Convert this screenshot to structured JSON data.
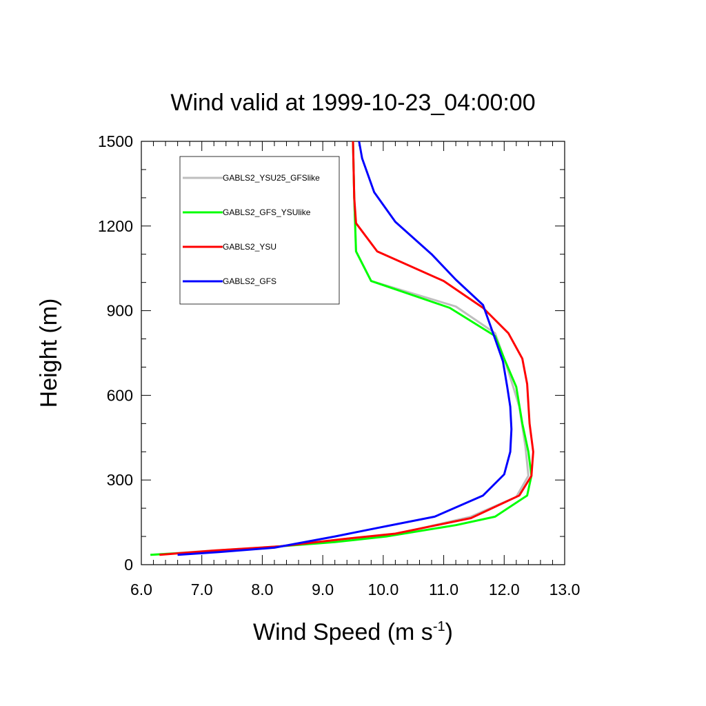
{
  "chart_data": {
    "type": "line",
    "title": "Wind valid at 1999-10-23_04:00:00",
    "xlabel": "Wind Speed (m s",
    "xlabel_sup": "-1",
    "xlabel_end": ")",
    "ylabel": "Height (m)",
    "xlim": [
      6.0,
      13.0
    ],
    "ylim": [
      0,
      1500
    ],
    "xticks": [
      6.0,
      7.0,
      8.0,
      9.0,
      10.0,
      11.0,
      12.0,
      13.0
    ],
    "xtick_labels": [
      "6.0",
      "7.0",
      "8.0",
      "9.0",
      "10.0",
      "11.0",
      "12.0",
      "13.0"
    ],
    "yticks": [
      0,
      300,
      600,
      900,
      1200,
      1500
    ],
    "ytick_labels": [
      "0",
      "300",
      "600",
      "900",
      "1200",
      "1500"
    ],
    "grid": false,
    "legend_position": "top-left",
    "series": [
      {
        "name": "GABLS2_YSU25_GFSlike",
        "color": "#bebebe",
        "x": [
          6.15,
          7.2,
          8.3,
          9.3,
          10.25,
          11.45,
          12.2,
          12.4,
          12.35,
          12.25,
          12.15,
          12.0,
          11.85,
          11.2,
          9.8,
          9.55,
          9.52,
          9.5
        ],
        "y": [
          35,
          50,
          65,
          90,
          110,
          170,
          240,
          315,
          420,
          560,
          630,
          730,
          820,
          915,
          1005,
          1110,
          1300,
          1500
        ]
      },
      {
        "name": "GABLS2_GFS_YSUlike",
        "color": "#00ff00",
        "x": [
          6.15,
          7.0,
          8.0,
          9.2,
          10.05,
          11.2,
          11.85,
          12.38,
          12.45,
          12.4,
          12.3,
          12.2,
          12.0,
          11.85,
          11.1,
          9.8,
          9.55,
          9.52,
          9.5
        ],
        "y": [
          35,
          45,
          60,
          80,
          100,
          140,
          170,
          245,
          315,
          400,
          500,
          630,
          730,
          810,
          910,
          1005,
          1110,
          1300,
          1500
        ]
      },
      {
        "name": "GABLS2_YSU",
        "color": "#ff0000",
        "x": [
          6.3,
          7.2,
          8.3,
          9.3,
          10.2,
          11.45,
          12.25,
          12.45,
          12.48,
          12.42,
          12.38,
          12.3,
          12.07,
          11.65,
          11.0,
          9.9,
          9.55,
          9.52,
          9.5
        ],
        "y": [
          35,
          50,
          65,
          90,
          110,
          165,
          245,
          315,
          400,
          500,
          640,
          730,
          820,
          910,
          1005,
          1110,
          1210,
          1300,
          1500
        ]
      },
      {
        "name": "GABLS2_GFS",
        "color": "#0000ff",
        "x": [
          6.6,
          7.3,
          8.2,
          9.2,
          9.9,
          10.85,
          11.65,
          12.0,
          12.1,
          12.12,
          12.1,
          12.05,
          11.98,
          11.85,
          11.65,
          11.2,
          10.8,
          10.2,
          9.85,
          9.65,
          9.6
        ],
        "y": [
          35,
          45,
          60,
          100,
          130,
          170,
          245,
          320,
          400,
          480,
          560,
          630,
          720,
          800,
          920,
          1010,
          1100,
          1215,
          1320,
          1440,
          1500
        ]
      }
    ]
  }
}
